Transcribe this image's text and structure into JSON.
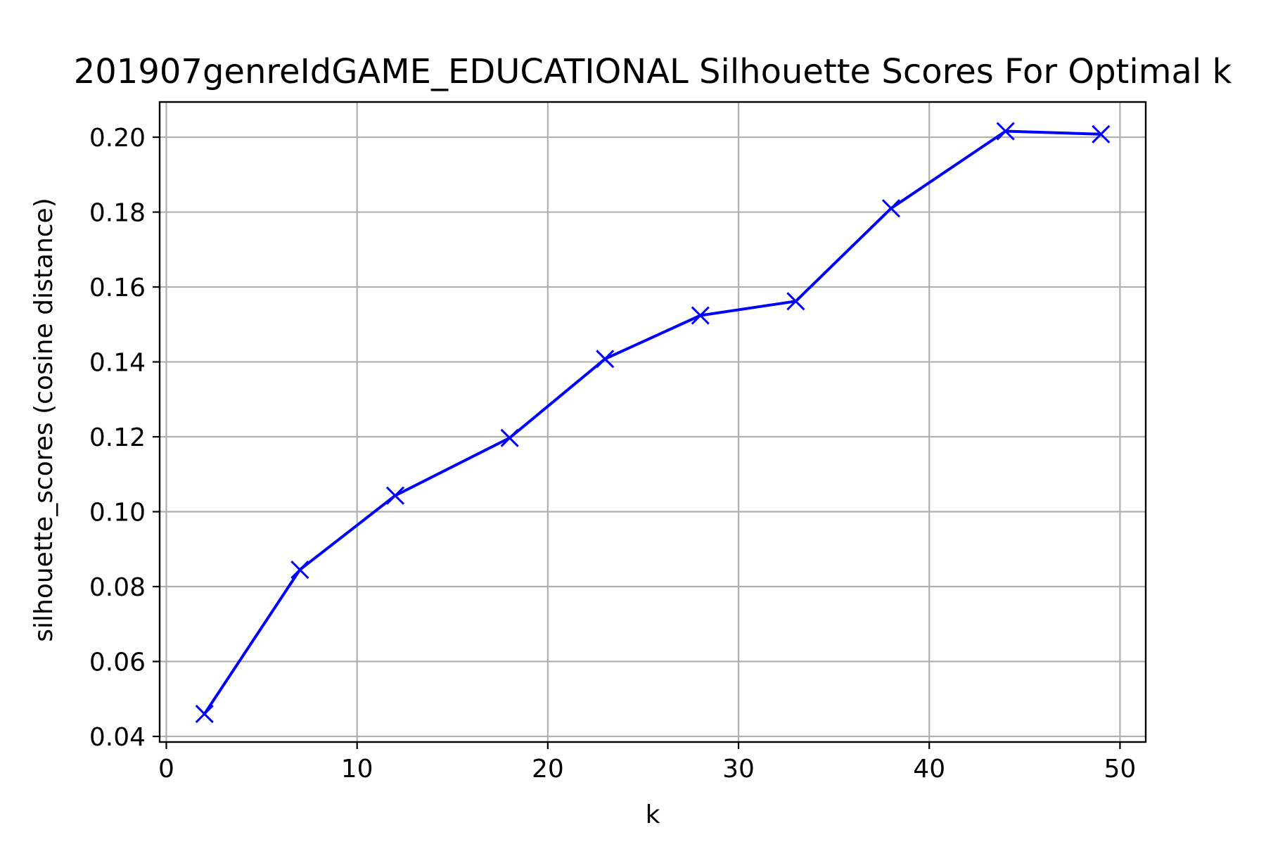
{
  "chart_data": {
    "type": "line",
    "title": "201907genreIdGAME_EDUCATIONAL Silhouette Scores For Optimal k",
    "xlabel": "k",
    "ylabel": "silhouette_scores (cosine distance)",
    "xlim": [
      -0.35,
      51.35
    ],
    "ylim": [
      0.0385,
      0.2094
    ],
    "xticks": [
      0,
      10,
      20,
      30,
      40,
      50
    ],
    "xtick_labels": [
      "0",
      "10",
      "20",
      "30",
      "40",
      "50"
    ],
    "yticks": [
      0.04,
      0.06,
      0.08,
      0.1,
      0.12,
      0.14,
      0.16,
      0.18,
      0.2
    ],
    "ytick_labels": [
      "0.04",
      "0.06",
      "0.08",
      "0.10",
      "0.12",
      "0.14",
      "0.16",
      "0.18",
      "0.20"
    ],
    "grid": true,
    "series": [
      {
        "color": "#0000ff",
        "marker": "x",
        "x": [
          2,
          7,
          12,
          18,
          23,
          28,
          33,
          38,
          44,
          49
        ],
        "y": [
          0.046,
          0.0845,
          0.1043,
          0.1197,
          0.1408,
          0.1524,
          0.1562,
          0.181,
          0.2016,
          0.2008
        ]
      }
    ]
  }
}
